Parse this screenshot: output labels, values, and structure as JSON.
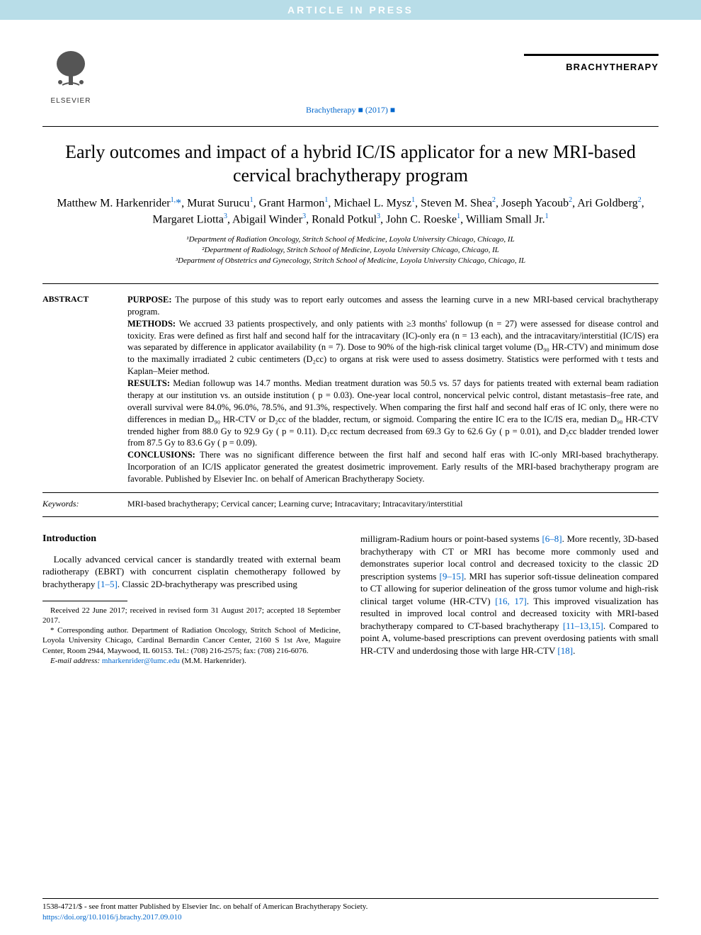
{
  "banner": "ARTICLE IN PRESS",
  "header": {
    "publisher_name": "ELSEVIER",
    "journal_ref": "Brachytherapy ■ (2017) ■",
    "journal_logo_text": "BRACHYTHERAPY",
    "logo_color": "#e67817",
    "bar_color": "#000000"
  },
  "title": "Early outcomes and impact of a hybrid IC/IS applicator for a new MRI-based cervical brachytherapy program",
  "authors_html": "Matthew M. Harkenrider<sup>1,</sup><span class='star'>*</span>, Murat Surucu<sup>1</sup>, Grant Harmon<sup>1</sup>, Michael L. Mysz<sup>1</sup>, Steven M. Shea<sup>2</sup>, Joseph Yacoub<sup>2</sup>, Ari Goldberg<sup>2</sup>, Margaret Liotta<sup>3</sup>, Abigail Winder<sup>3</sup>, Ronald Potkul<sup>3</sup>, John C. Roeske<sup>1</sup>, William Small Jr.<sup>1</sup>",
  "affiliations": [
    "¹Department of Radiation Oncology, Stritch School of Medicine, Loyola University Chicago, Chicago, IL",
    "²Department of Radiology, Stritch School of Medicine, Loyola University Chicago, Chicago, IL",
    "³Department of Obstetrics and Gynecology, Stritch School of Medicine, Loyola University Chicago, Chicago, IL"
  ],
  "abstract": {
    "label": "ABSTRACT",
    "purpose_label": "PURPOSE:",
    "purpose": " The purpose of this study was to report early outcomes and assess the learning curve in a new MRI-based cervical brachytherapy program.",
    "methods_label": "METHODS:",
    "methods": " We accrued 33 patients prospectively, and only patients with ≥3 months' followup (n = 27) were assessed for disease control and toxicity. Eras were defined as first half and second half for the intracavitary (IC)-only era (n = 13 each), and the intracavitary/interstitial (IC/IS) era was separated by difference in applicator availability (n = 7). Dose to 90% of the high-risk clinical target volume (D₉₀ HR-CTV) and minimum dose to the maximally irradiated 2 cubic centimeters (D₂cc) to organs at risk were used to assess dosimetry. Statistics were performed with t tests and Kaplan–Meier method.",
    "results_label": "RESULTS:",
    "results": " Median followup was 14.7 months. Median treatment duration was 50.5 vs. 57 days for patients treated with external beam radiation therapy at our institution vs. an outside institution ( p = 0.03). One-year local control, noncervical pelvic control, distant metastasis–free rate, and overall survival were 84.0%, 96.0%, 78.5%, and 91.3%, respectively. When comparing the first half and second half eras of IC only, there were no differences in median D₉₀ HR-CTV or D₂cc of the bladder, rectum, or sigmoid. Comparing the entire IC era to the IC/IS era, median D₉₀ HR-CTV trended higher from 88.0 Gy to 92.9 Gy ( p = 0.11). D₂cc rectum decreased from 69.3 Gy to 62.6 Gy ( p = 0.01), and D₂cc bladder trended lower from 87.5 Gy to 83.6 Gy ( p = 0.09).",
    "conclusions_label": "CONCLUSIONS:",
    "conclusions": " There was no significant difference between the first half and second half eras with IC-only MRI-based brachytherapy. Incorporation of an IC/IS applicator generated the greatest dosimetric improvement. Early results of the MRI-based brachytherapy program are favorable. Published by Elsevier Inc. on behalf of American Brachytherapy Society."
  },
  "keywords": {
    "label": "Keywords:",
    "text": "MRI-based brachytherapy; Cervical cancer; Learning curve; Intracavitary; Intracavitary/interstitial"
  },
  "body": {
    "intro_heading": "Introduction",
    "left_p1": "Locally advanced cervical cancer is standardly treated with external beam radiotherapy (EBRT) with concurrent cisplatin chemotherapy followed by brachytherapy ",
    "left_ref1": "[1–5]",
    "left_p1b": ". Classic 2D-brachytherapy was prescribed using",
    "right_p1a": "milligram-Radium hours or point-based systems ",
    "right_ref1": "[6–8]",
    "right_p1b": ". More recently, 3D-based brachytherapy with CT or MRI has become more commonly used and demonstrates superior local control and decreased toxicity to the classic 2D prescription systems ",
    "right_ref2": "[9–15]",
    "right_p1c": ". MRI has superior soft-tissue delineation compared to CT allowing for superior delineation of the gross tumor volume and high-risk clinical target volume (HR-CTV) ",
    "right_ref3": "[16, 17]",
    "right_p1d": ". This improved visualization has resulted in improved local control and decreased toxicity with MRI-based brachytherapy compared to CT-based brachytherapy ",
    "right_ref4": "[11–13,15]",
    "right_p1e": ". Compared to point A, volume-based prescriptions can prevent overdosing patients with small HR-CTV and underdosing those with large HR-CTV ",
    "right_ref5": "[18]",
    "right_p1f": "."
  },
  "footnotes": {
    "received": "Received 22 June 2017; received in revised form 31 August 2017; accepted 18 September 2017.",
    "corresponding": "* Corresponding author. Department of Radiation Oncology, Stritch School of Medicine, Loyola University Chicago, Cardinal Bernardin Cancer Center, 2160 S 1st Ave, Maguire Center, Room 2944, Maywood, IL 60153. Tel.: (708) 216-2575; fax: (708) 216-6076.",
    "email_label": "E-mail address:",
    "email": "mharkenrider@lumc.edu",
    "email_suffix": " (M.M. Harkenrider)."
  },
  "footer": {
    "copyright": "1538-4721/$ - see front matter Published by Elsevier Inc. on behalf of American Brachytherapy Society.",
    "doi": "https://doi.org/10.1016/j.brachy.2017.09.010"
  },
  "colors": {
    "banner_bg": "#b8dde8",
    "banner_text": "#ffffff",
    "link": "#0066cc",
    "text": "#000000"
  }
}
